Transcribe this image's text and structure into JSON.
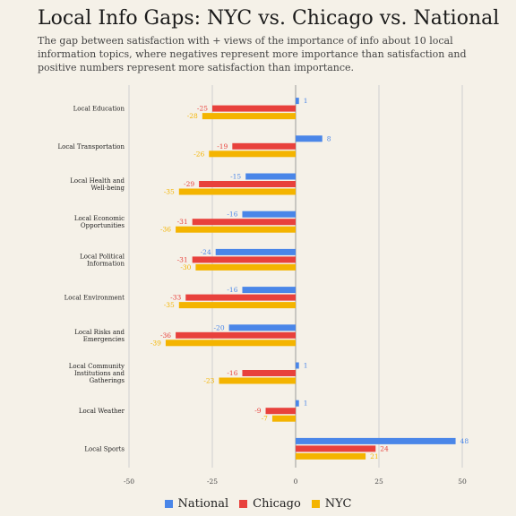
{
  "title": "Local Info Gaps: NYC vs. Chicago vs. National",
  "subtitle": "The gap between satisfaction with + views of the importance of info about 10 local information topics, where negatives represent more importance than satisfaction and positive numbers represent more satisfaction than importance.",
  "colors": {
    "National": "#4a86e8",
    "Chicago": "#e8413c",
    "NYC": "#f4b400",
    "grid": "#cfcfcf",
    "text": "#333333"
  },
  "chart_data": {
    "type": "bar",
    "orientation": "horizontal",
    "title": "Local Info Gaps: NYC vs. Chicago vs. National",
    "categories": [
      "Local Education",
      "Local Transportation",
      "Local Health and Well-being",
      "Local Economic Opportunities",
      "Local Political Information",
      "Local Environment",
      "Local Risks and Emergencies",
      "Local Community Institutions and Gatherings",
      "Local Weather",
      "Local Sports"
    ],
    "series": [
      {
        "name": "National",
        "values": [
          1,
          8,
          -15,
          -16,
          -24,
          -16,
          -20,
          1,
          1,
          48
        ]
      },
      {
        "name": "Chicago",
        "values": [
          -25,
          -19,
          -29,
          -31,
          -31,
          -33,
          -36,
          -16,
          -9,
          24
        ]
      },
      {
        "name": "NYC",
        "values": [
          -28,
          -26,
          -35,
          -36,
          -30,
          -35,
          -39,
          -23,
          -7,
          21
        ]
      }
    ],
    "xlim": [
      -50,
      50
    ],
    "xticks": [
      "-50",
      "-25",
      "0",
      "25",
      "50"
    ],
    "grid": true,
    "legend": "bottom"
  }
}
